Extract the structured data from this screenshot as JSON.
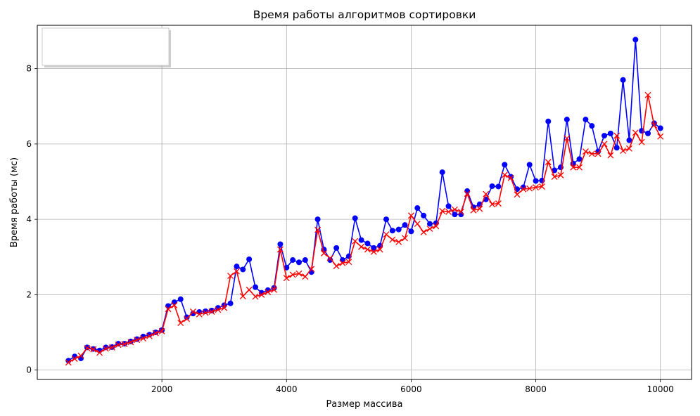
{
  "chart_data": {
    "type": "line",
    "title": "Время работы алгоритмов сортировки",
    "xlabel": "Размер массива",
    "ylabel": "Время работы (мс)",
    "xlim": [
      0,
      10500
    ],
    "ylim": [
      -0.25,
      9.15
    ],
    "xticks": [
      2000,
      4000,
      6000,
      8000,
      10000
    ],
    "yticks": [
      0,
      2,
      4,
      6,
      8
    ],
    "grid": true,
    "legend": "upper-left, empty",
    "x": [
      500,
      600,
      700,
      800,
      900,
      1000,
      1100,
      1200,
      1300,
      1400,
      1500,
      1600,
      1700,
      1800,
      1900,
      2000,
      2100,
      2200,
      2300,
      2400,
      2500,
      2600,
      2700,
      2800,
      2900,
      3000,
      3100,
      3200,
      3300,
      3400,
      3500,
      3600,
      3700,
      3800,
      3900,
      4000,
      4100,
      4200,
      4300,
      4400,
      4500,
      4600,
      4700,
      4800,
      4900,
      5000,
      5100,
      5200,
      5300,
      5400,
      5500,
      5600,
      5700,
      5800,
      5900,
      6000,
      6100,
      6200,
      6300,
      6400,
      6500,
      6600,
      6700,
      6800,
      6900,
      7000,
      7100,
      7200,
      7300,
      7400,
      7500,
      7600,
      7700,
      7800,
      7900,
      8000,
      8100,
      8200,
      8300,
      8400,
      8500,
      8600,
      8700,
      8800,
      8900,
      9000,
      9100,
      9200,
      9300,
      9400,
      9500,
      9600,
      9700,
      9800,
      9900,
      10000
    ],
    "series": [
      {
        "color": "#0000ff",
        "marker": "circle",
        "values": [
          0.25,
          0.36,
          0.31,
          0.6,
          0.56,
          0.52,
          0.6,
          0.61,
          0.7,
          0.7,
          0.76,
          0.82,
          0.89,
          0.94,
          1.0,
          1.06,
          1.7,
          1.8,
          1.88,
          1.4,
          1.5,
          1.54,
          1.56,
          1.58,
          1.65,
          1.72,
          1.77,
          2.75,
          2.67,
          2.94,
          2.2,
          2.05,
          2.12,
          2.18,
          3.34,
          2.72,
          2.92,
          2.86,
          2.92,
          2.6,
          4.0,
          3.2,
          2.92,
          3.24,
          2.92,
          3.02,
          4.03,
          3.45,
          3.36,
          3.24,
          3.3,
          4.0,
          3.7,
          3.73,
          3.85,
          3.68,
          4.3,
          4.1,
          3.88,
          3.9,
          5.25,
          4.35,
          4.13,
          4.13,
          4.75,
          4.32,
          4.4,
          4.53,
          4.88,
          4.87,
          5.45,
          5.13,
          4.8,
          4.85,
          5.45,
          5.02,
          5.03,
          6.6,
          5.3,
          5.38,
          6.65,
          5.48,
          5.6,
          6.65,
          6.48,
          5.8,
          6.22,
          6.28,
          5.9,
          7.7,
          6.1,
          8.77,
          6.35,
          6.28,
          6.55,
          6.42
        ]
      },
      {
        "color": "#ff0000",
        "marker": "x",
        "values": [
          0.2,
          0.3,
          0.38,
          0.58,
          0.55,
          0.46,
          0.57,
          0.6,
          0.67,
          0.69,
          0.74,
          0.8,
          0.84,
          0.9,
          0.98,
          1.03,
          1.62,
          1.72,
          1.25,
          1.36,
          1.55,
          1.48,
          1.52,
          1.55,
          1.6,
          1.65,
          2.5,
          2.62,
          1.96,
          2.13,
          1.95,
          2.0,
          2.07,
          2.13,
          3.2,
          2.44,
          2.53,
          2.56,
          2.48,
          2.68,
          3.72,
          3.1,
          2.97,
          2.76,
          2.84,
          2.87,
          3.42,
          3.27,
          3.2,
          3.14,
          3.2,
          3.6,
          3.46,
          3.4,
          3.5,
          4.1,
          3.88,
          3.66,
          3.75,
          3.82,
          4.22,
          4.2,
          4.26,
          4.2,
          4.68,
          4.24,
          4.28,
          4.67,
          4.4,
          4.42,
          5.18,
          5.1,
          4.66,
          4.8,
          4.82,
          4.85,
          4.87,
          5.52,
          5.13,
          5.17,
          6.15,
          5.38,
          5.38,
          5.8,
          5.74,
          5.74,
          6.0,
          5.7,
          6.22,
          5.82,
          5.88,
          6.3,
          6.05,
          7.3,
          6.5,
          6.2
        ]
      }
    ]
  }
}
